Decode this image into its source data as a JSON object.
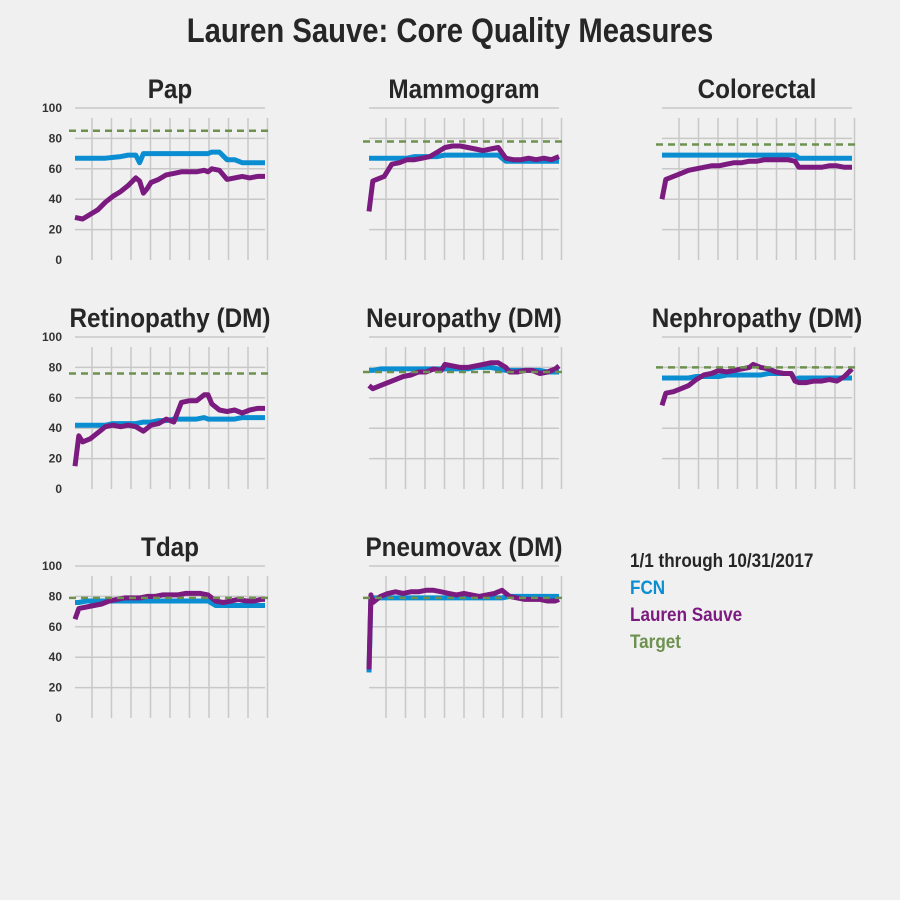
{
  "title": "Lauren Sauve: Core Quality Measures",
  "legend": {
    "date_range": "1/1 through 10/31/2017",
    "entries": [
      {
        "name": "FCN",
        "color": "#0a8ed1"
      },
      {
        "name": "Lauren Sauve",
        "color": "#7b1a7f"
      },
      {
        "name": "Target",
        "color": "#6e9150"
      }
    ]
  },
  "chart_data": [
    {
      "type": "line",
      "title": "Pap",
      "ylim": [
        0,
        100
      ],
      "grid": true,
      "y_ticks": [
        "0",
        "20",
        "40",
        "60",
        "80",
        "100"
      ],
      "x": [
        0,
        0.04,
        0.08,
        0.12,
        0.16,
        0.2,
        0.24,
        0.28,
        0.32,
        0.34,
        0.36,
        0.38,
        0.4,
        0.44,
        0.48,
        0.52,
        0.56,
        0.6,
        0.64,
        0.68,
        0.7,
        0.72,
        0.76,
        0.8,
        0.84,
        0.88,
        0.92,
        0.96,
        1
      ],
      "target": 85,
      "series": [
        {
          "name": "FCN",
          "values": [
            67,
            67,
            67,
            67,
            67,
            67.5,
            68,
            69,
            69,
            64,
            70,
            70,
            70,
            70,
            70,
            70,
            70,
            70,
            70,
            70,
            70,
            71,
            71,
            66,
            66,
            64,
            64,
            64,
            64
          ]
        },
        {
          "name": "Lauren Sauve",
          "values": [
            28,
            27,
            30,
            33,
            38,
            42,
            45,
            49,
            54,
            52,
            44,
            47,
            51,
            53,
            56,
            57,
            58,
            58,
            58,
            59,
            58,
            60,
            59,
            53,
            54,
            55,
            54,
            55,
            55
          ]
        }
      ]
    },
    {
      "type": "line",
      "title": "Mammogram",
      "ylim": [
        0,
        100
      ],
      "grid": true,
      "x": [
        0,
        0.02,
        0.04,
        0.08,
        0.12,
        0.16,
        0.2,
        0.24,
        0.28,
        0.32,
        0.36,
        0.4,
        0.44,
        0.48,
        0.52,
        0.56,
        0.6,
        0.64,
        0.68,
        0.72,
        0.76,
        0.8,
        0.84,
        0.88,
        0.92,
        0.96,
        1
      ],
      "target": 78,
      "series": [
        {
          "name": "FCN",
          "values": [
            67,
            67,
            67,
            67,
            67,
            67,
            67,
            68,
            68,
            68,
            68,
            69,
            69,
            69,
            69,
            69,
            69,
            69,
            69,
            65,
            65,
            65,
            65,
            65,
            65,
            65,
            65
          ]
        },
        {
          "name": "Lauren Sauve",
          "values": [
            32,
            52,
            53,
            55,
            63,
            64,
            66,
            66,
            67,
            68,
            71,
            74,
            75,
            75,
            74,
            73,
            72,
            73,
            74,
            67,
            66,
            66,
            67,
            66,
            67,
            66,
            68
          ]
        }
      ]
    },
    {
      "type": "line",
      "title": "Colorectal",
      "ylim": [
        0,
        100
      ],
      "grid": true,
      "x": [
        0,
        0.02,
        0.06,
        0.1,
        0.14,
        0.18,
        0.22,
        0.26,
        0.3,
        0.34,
        0.38,
        0.42,
        0.46,
        0.5,
        0.54,
        0.58,
        0.62,
        0.66,
        0.7,
        0.72,
        0.76,
        0.8,
        0.84,
        0.88,
        0.92,
        0.96,
        1
      ],
      "target": 76,
      "series": [
        {
          "name": "FCN",
          "values": [
            69,
            69,
            69,
            69,
            69,
            69,
            69,
            69,
            69,
            69,
            69,
            69,
            69,
            69,
            69,
            69,
            69,
            69,
            69,
            67,
            67,
            67,
            67,
            67,
            67,
            67,
            67
          ]
        },
        {
          "name": "Lauren Sauve",
          "values": [
            40,
            53,
            55,
            57,
            59,
            60,
            61,
            62,
            62,
            63,
            64,
            64,
            65,
            65,
            66,
            66,
            66,
            66,
            65,
            61,
            61,
            61,
            61,
            62,
            62,
            61,
            61
          ]
        }
      ]
    },
    {
      "type": "line",
      "title": "Retinopathy (DM)",
      "ylim": [
        0,
        100
      ],
      "grid": true,
      "y_ticks": [
        "0",
        "20",
        "40",
        "60",
        "80",
        "100"
      ],
      "x": [
        0,
        0.02,
        0.04,
        0.08,
        0.12,
        0.16,
        0.2,
        0.24,
        0.28,
        0.32,
        0.36,
        0.4,
        0.44,
        0.48,
        0.52,
        0.56,
        0.6,
        0.64,
        0.68,
        0.7,
        0.72,
        0.76,
        0.8,
        0.84,
        0.88,
        0.92,
        0.96,
        1
      ],
      "target": 76,
      "series": [
        {
          "name": "FCN",
          "values": [
            42,
            42,
            42,
            42,
            42,
            42,
            43,
            43,
            43,
            43,
            44,
            44,
            45,
            45,
            46,
            46,
            46,
            46,
            47,
            46,
            46,
            46,
            46,
            46,
            47,
            47,
            47,
            47
          ]
        },
        {
          "name": "Lauren Sauve",
          "values": [
            15,
            35,
            31,
            33,
            37,
            41,
            42,
            41,
            42,
            41,
            38,
            42,
            43,
            46,
            44,
            57,
            58,
            58,
            62,
            62,
            56,
            52,
            51,
            52,
            50,
            52,
            53,
            53
          ]
        }
      ]
    },
    {
      "type": "line",
      "title": "Neuropathy (DM)",
      "ylim": [
        0,
        100
      ],
      "grid": true,
      "x": [
        0,
        0.02,
        0.06,
        0.1,
        0.14,
        0.18,
        0.22,
        0.26,
        0.3,
        0.34,
        0.38,
        0.4,
        0.44,
        0.48,
        0.52,
        0.56,
        0.6,
        0.64,
        0.68,
        0.72,
        0.74,
        0.78,
        0.82,
        0.86,
        0.9,
        0.94,
        0.98,
        1
      ],
      "target": 77,
      "series": [
        {
          "name": "FCN",
          "values": [
            78,
            78,
            79,
            79,
            79,
            79,
            79,
            79,
            79,
            79,
            79,
            79,
            79,
            79,
            79,
            80,
            80,
            80,
            79,
            78,
            78,
            78,
            78,
            78,
            78,
            77,
            77,
            77
          ]
        },
        {
          "name": "Lauren Sauve",
          "values": [
            68,
            66,
            68,
            70,
            72,
            74,
            75,
            77,
            77,
            79,
            78,
            82,
            81,
            80,
            80,
            81,
            82,
            83,
            83,
            80,
            77,
            77,
            78,
            78,
            76,
            77,
            79,
            81
          ]
        }
      ]
    },
    {
      "type": "line",
      "title": "Nephropathy (DM)",
      "ylim": [
        0,
        100
      ],
      "grid": true,
      "x": [
        0,
        0.02,
        0.06,
        0.1,
        0.14,
        0.18,
        0.22,
        0.26,
        0.3,
        0.34,
        0.38,
        0.42,
        0.46,
        0.48,
        0.52,
        0.56,
        0.6,
        0.64,
        0.68,
        0.7,
        0.72,
        0.76,
        0.8,
        0.84,
        0.88,
        0.92,
        0.96,
        1
      ],
      "target": 80,
      "series": [
        {
          "name": "FCN",
          "values": [
            73,
            73,
            73,
            73,
            73,
            74,
            74,
            74,
            74,
            75,
            75,
            75,
            75,
            75,
            75,
            76,
            76,
            76,
            76,
            72,
            73,
            73,
            73,
            73,
            73,
            73,
            73,
            73
          ]
        },
        {
          "name": "Lauren Sauve",
          "values": [
            55,
            63,
            64,
            66,
            68,
            72,
            75,
            76,
            78,
            77,
            78,
            79,
            80,
            82,
            80,
            79,
            77,
            76,
            76,
            71,
            70,
            70,
            71,
            71,
            72,
            71,
            74,
            79
          ]
        }
      ]
    },
    {
      "type": "line",
      "title": "Tdap",
      "ylim": [
        0,
        100
      ],
      "grid": true,
      "y_ticks": [
        "0",
        "20",
        "40",
        "60",
        "80",
        "100"
      ],
      "x": [
        0,
        0.02,
        0.06,
        0.1,
        0.14,
        0.18,
        0.22,
        0.26,
        0.3,
        0.34,
        0.38,
        0.42,
        0.46,
        0.5,
        0.54,
        0.58,
        0.62,
        0.66,
        0.7,
        0.74,
        0.78,
        0.82,
        0.86,
        0.9,
        0.94,
        0.98,
        1
      ],
      "target": 79,
      "series": [
        {
          "name": "FCN",
          "values": [
            76,
            76,
            77,
            77,
            77,
            77,
            77,
            77,
            77,
            77,
            77,
            77,
            77,
            77,
            77,
            77,
            77,
            77,
            77,
            74,
            74,
            74,
            74,
            74,
            74,
            74,
            74
          ]
        },
        {
          "name": "Lauren Sauve",
          "values": [
            65,
            72,
            73,
            74,
            75,
            77,
            78,
            79,
            79,
            79,
            80,
            80,
            81,
            81,
            81,
            82,
            82,
            82,
            81,
            77,
            76,
            77,
            78,
            77,
            77,
            78,
            78
          ]
        }
      ]
    },
    {
      "type": "line",
      "title": "Pneumovax (DM)",
      "ylim": [
        0,
        100
      ],
      "grid": true,
      "x": [
        0,
        0.01,
        0.02,
        0.06,
        0.1,
        0.14,
        0.18,
        0.22,
        0.26,
        0.3,
        0.34,
        0.38,
        0.42,
        0.46,
        0.5,
        0.54,
        0.58,
        0.62,
        0.66,
        0.7,
        0.74,
        0.78,
        0.82,
        0.86,
        0.9,
        0.94,
        0.98,
        1
      ],
      "target": 79,
      "series": [
        {
          "name": "FCN",
          "values": [
            30,
            78,
            79,
            79,
            79,
            79,
            79,
            79,
            79,
            79,
            79,
            79,
            79,
            79,
            79,
            79,
            79,
            79,
            79,
            79,
            80,
            80,
            80,
            80,
            80,
            80,
            80,
            80
          ]
        },
        {
          "name": "Lauren Sauve",
          "values": [
            32,
            81,
            76,
            80,
            82,
            83,
            82,
            83,
            83,
            84,
            84,
            83,
            82,
            81,
            82,
            81,
            80,
            81,
            82,
            84,
            80,
            79,
            78,
            78,
            78,
            77,
            77,
            78
          ]
        }
      ]
    }
  ]
}
